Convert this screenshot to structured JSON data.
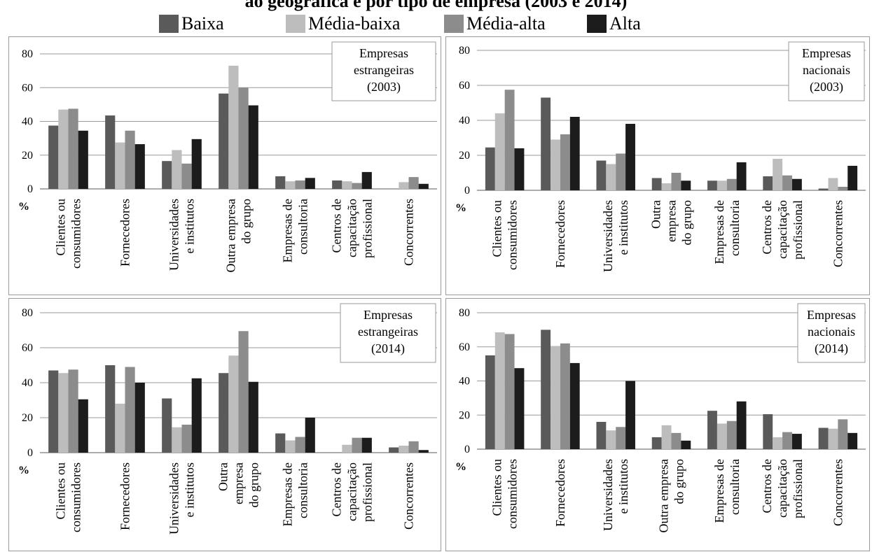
{
  "title": "ão geográfica e por tipo de empresa (2003 e 2014)",
  "legend": [
    {
      "name": "Baixa",
      "color": "#5a5a5a"
    },
    {
      "name": "Média-baixa",
      "color": "#bdbdbd"
    },
    {
      "name": "Média-alta",
      "color": "#8c8c8c"
    },
    {
      "name": "Alta",
      "color": "#1c1c1c"
    }
  ],
  "chart_data": [
    {
      "type": "bar",
      "annotation": [
        "Empresas",
        "estrangeiras",
        "(2003)"
      ],
      "ylabel": "%",
      "ylim": [
        0,
        80
      ],
      "yticks": [
        "0",
        "20",
        "40",
        "60",
        "80"
      ],
      "categories": [
        [
          "Clientes ou",
          "consumidores"
        ],
        [
          "Fornecedores"
        ],
        [
          "Universidades",
          "e institutos"
        ],
        [
          "Outra empresa",
          "do grupo"
        ],
        [
          "Empresas de",
          "consultoria"
        ],
        [
          "Centros de",
          "capacitação",
          "profissional"
        ],
        [
          "Concorrentes"
        ]
      ],
      "series": [
        {
          "name": "Baixa",
          "values": [
            37.5,
            43.5,
            16.5,
            56.5,
            7.5,
            5,
            0
          ]
        },
        {
          "name": "Média-baixa",
          "values": [
            47,
            27.5,
            23,
            73,
            4.5,
            4.5,
            4
          ]
        },
        {
          "name": "Média-alta",
          "values": [
            47.5,
            34.5,
            15,
            60,
            5,
            3.5,
            7
          ]
        },
        {
          "name": "Alta",
          "values": [
            34.5,
            26.5,
            29.5,
            49.5,
            6.5,
            10,
            3
          ]
        }
      ]
    },
    {
      "type": "bar",
      "annotation": [
        "Empresas",
        "nacionais",
        "(2003)"
      ],
      "ylabel": "%",
      "ylim": [
        0,
        80
      ],
      "yticks": [
        "0",
        "20",
        "40",
        "60",
        "80"
      ],
      "categories": [
        [
          "Clientes ou",
          "consumidores"
        ],
        [
          "Fornecedores"
        ],
        [
          "Universidades",
          "e institutos"
        ],
        [
          "Outra",
          "empresa",
          "do grupo"
        ],
        [
          "Empresas de",
          "consultoria"
        ],
        [
          "Centros de",
          "capacitação",
          "profissional"
        ],
        [
          "Concorrentes"
        ]
      ],
      "series": [
        {
          "name": "Baixa",
          "values": [
            24.5,
            53,
            17,
            7,
            5.5,
            8,
            1
          ]
        },
        {
          "name": "Média-baixa",
          "values": [
            44,
            29,
            15,
            4,
            5.5,
            18,
            7
          ]
        },
        {
          "name": "Média-alta",
          "values": [
            57.5,
            32,
            21,
            10,
            6.5,
            8.5,
            2
          ]
        },
        {
          "name": "Alta",
          "values": [
            24,
            42,
            38,
            5.5,
            16,
            6.5,
            14
          ]
        }
      ]
    },
    {
      "type": "bar",
      "annotation": [
        "Empresas",
        "estrangeiras",
        "(2014)"
      ],
      "ylabel": "%",
      "ylim": [
        0,
        80
      ],
      "yticks": [
        "0",
        "20",
        "40",
        "60",
        "80"
      ],
      "categories": [
        [
          "Clientes ou",
          "consumidores"
        ],
        [
          "Fornecedores"
        ],
        [
          "Universidades",
          "e institutos"
        ],
        [
          "Outra",
          "empresa",
          "do grupo"
        ],
        [
          "Empresas de",
          "consultoria"
        ],
        [
          "Centros de",
          "capacitação",
          "profissional"
        ],
        [
          "Concorrentes"
        ]
      ],
      "series": [
        {
          "name": "Baixa",
          "values": [
            47,
            50,
            31,
            45.5,
            11,
            0,
            3
          ]
        },
        {
          "name": "Média-baixa",
          "values": [
            45.5,
            28,
            14.5,
            55.5,
            7,
            4.5,
            4
          ]
        },
        {
          "name": "Média-alta",
          "values": [
            47.5,
            49,
            16,
            69.5,
            9,
            8.5,
            6.5
          ]
        },
        {
          "name": "Alta",
          "values": [
            30.5,
            40,
            42.5,
            40.5,
            20,
            8.5,
            1.5
          ]
        }
      ]
    },
    {
      "type": "bar",
      "annotation": [
        "Empresas",
        "nacionais",
        "(2014)"
      ],
      "ylabel": "%",
      "ylim": [
        0,
        80
      ],
      "yticks": [
        "0",
        "20",
        "40",
        "60",
        "80"
      ],
      "categories": [
        [
          "Clientes ou",
          "consumidores"
        ],
        [
          "Fornecedores"
        ],
        [
          "Universidades",
          "e institutos"
        ],
        [
          "Outra empresa",
          "do grupo"
        ],
        [
          "Empresas de",
          "consultoria"
        ],
        [
          "Centros de",
          "capacitação",
          "profissional"
        ],
        [
          "Concorrentes"
        ]
      ],
      "series": [
        {
          "name": "Baixa",
          "values": [
            55,
            70,
            16,
            7,
            22.5,
            20.5,
            12.5
          ]
        },
        {
          "name": "Média-baixa",
          "values": [
            68.5,
            60.5,
            11,
            14,
            15,
            7,
            12
          ]
        },
        {
          "name": "Média-alta",
          "values": [
            67.5,
            62,
            13,
            9.5,
            16.5,
            10,
            17.5
          ]
        },
        {
          "name": "Alta",
          "values": [
            47.5,
            50.5,
            40,
            5,
            28,
            9,
            9.5
          ]
        }
      ]
    }
  ]
}
